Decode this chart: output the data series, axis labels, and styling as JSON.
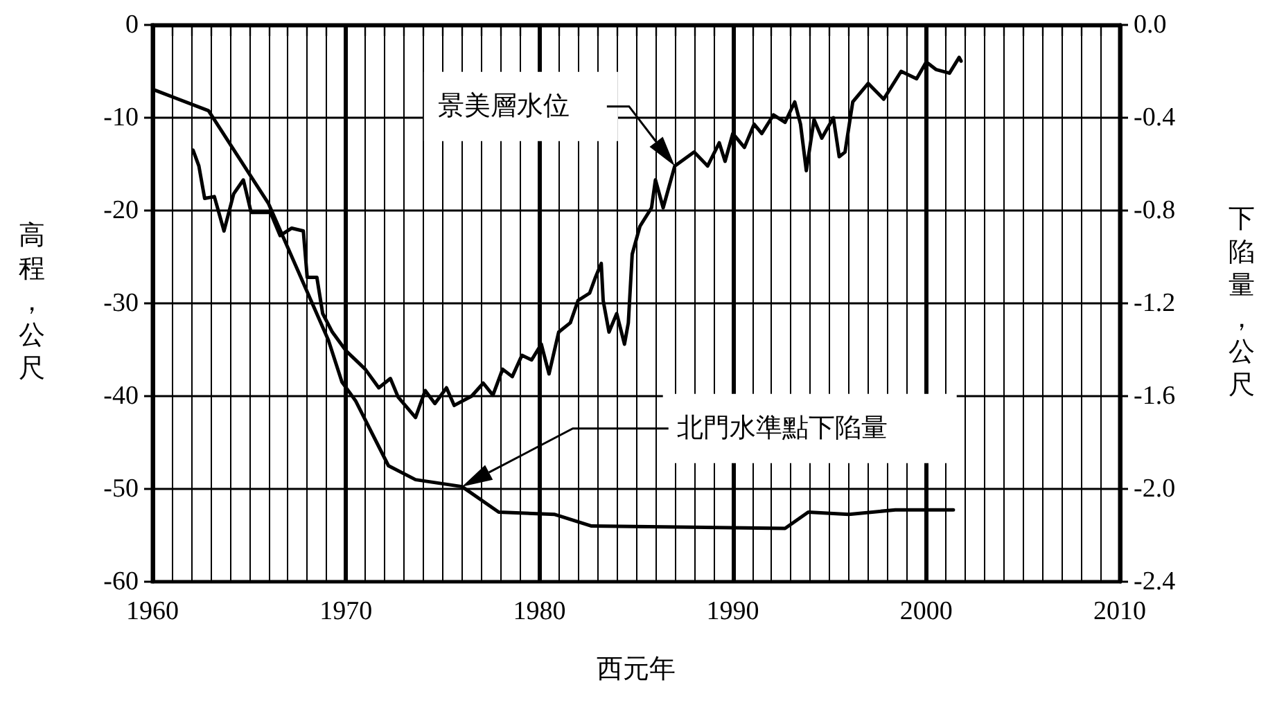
{
  "chart_data": {
    "type": "line",
    "xlabel": "西元年",
    "ylabel": "高程，公尺",
    "y2label": "下陷量，公尺",
    "xlim": [
      1960,
      2010
    ],
    "xticks": [
      1960,
      1970,
      1980,
      1990,
      2000,
      2010
    ],
    "ylim": [
      -60,
      0
    ],
    "yticks": [
      -60,
      -50,
      -40,
      -30,
      -20,
      -10,
      0
    ],
    "y2lim": [
      -2.4,
      0
    ],
    "y2ticks": [
      {
        "value": -2.4,
        "label": "-2.4"
      },
      {
        "value": -2.0,
        "label": "-2.0"
      },
      {
        "value": -1.6,
        "label": "-1.6"
      },
      {
        "value": -1.2,
        "label": "-1.2"
      },
      {
        "value": -0.8,
        "label": "-0.8"
      },
      {
        "value": -0.4,
        "label": "-0.4"
      },
      {
        "value": 0,
        "label": "0.0"
      }
    ],
    "grid": true,
    "marker": "none",
    "line_style": "solid",
    "series": [
      {
        "name": "景美層水位",
        "color": "#000000",
        "x": [
          1962.1,
          1962.4,
          1962.7,
          1963.2,
          1963.7,
          1964.2,
          1964.7,
          1965.1,
          1966.1,
          1966.6,
          1967.2,
          1967.8,
          1968.0,
          1968.5,
          1968.8,
          1969.3,
          1970.0,
          1971.0,
          1971.7,
          1972.3,
          1972.7,
          1973.6,
          1974.1,
          1974.6,
          1975.2,
          1975.6,
          1976.5,
          1977.1,
          1977.6,
          1978.1,
          1978.6,
          1979.1,
          1979.6,
          1980.1,
          1980.5,
          1981.0,
          1981.6,
          1982.0,
          1982.6,
          1982.9,
          1983.2,
          1983.3,
          1983.6,
          1984.0,
          1984.4,
          1984.6,
          1984.8,
          1985.2,
          1985.8,
          1986.0,
          1986.4,
          1987.0,
          1988.0,
          1988.7,
          1989.3,
          1989.6,
          1990.0,
          1990.6,
          1991.1,
          1991.5,
          1992.1,
          1992.7,
          1993.2,
          1993.5,
          1993.8,
          1994.2,
          1994.6,
          1995.2,
          1995.5,
          1995.8,
          1996.2,
          1997.0,
          1997.8,
          1998.7,
          1999.5,
          2000.0,
          2000.5,
          2001.2,
          2001.7,
          2001.8
        ],
        "values": [
          -13.5,
          -15.2,
          -18.7,
          -18.5,
          -22.2,
          -18.2,
          -16.7,
          -20.2,
          -20.2,
          -22.7,
          -21.9,
          -22.2,
          -27.2,
          -27.2,
          -31.1,
          -33.1,
          -35.1,
          -37.1,
          -39.1,
          -38.1,
          -40.1,
          -42.3,
          -39.4,
          -40.8,
          -39.1,
          -41.0,
          -40.0,
          -38.6,
          -39.9,
          -37.1,
          -37.9,
          -35.6,
          -36.1,
          -34.4,
          -37.6,
          -33.1,
          -32.1,
          -29.7,
          -28.9,
          -27.2,
          -25.7,
          -29.7,
          -33.1,
          -31.1,
          -34.4,
          -32.1,
          -24.7,
          -21.7,
          -19.7,
          -16.7,
          -19.7,
          -15.2,
          -13.7,
          -15.2,
          -12.7,
          -14.7,
          -11.7,
          -13.2,
          -10.7,
          -11.7,
          -9.7,
          -10.5,
          -8.3,
          -10.7,
          -15.7,
          -10.2,
          -12.2,
          -10.0,
          -14.2,
          -13.7,
          -8.3,
          -6.3,
          -8.0,
          -5.0,
          -5.8,
          -4.0,
          -4.8,
          -5.2,
          -3.5,
          -3.9
        ]
      },
      {
        "name": "北門水準點下陷量",
        "color": "#000000",
        "axis": "y2",
        "x": [
          1960.1,
          1962.9,
          1966.0,
          1969.1,
          1969.8,
          1970.5,
          1972.2,
          1973.6,
          1976.0,
          1977.9,
          1980.8,
          1982.7,
          1992.7,
          1993.9,
          1996.0,
          1998.4,
          2001.4
        ],
        "values": [
          -0.28,
          -0.37,
          -0.77,
          -1.36,
          -1.54,
          -1.62,
          -1.9,
          -1.96,
          -1.99,
          -2.1,
          -2.11,
          -2.16,
          -2.17,
          -2.1,
          -2.11,
          -2.09,
          -2.09
        ]
      }
    ]
  }
}
